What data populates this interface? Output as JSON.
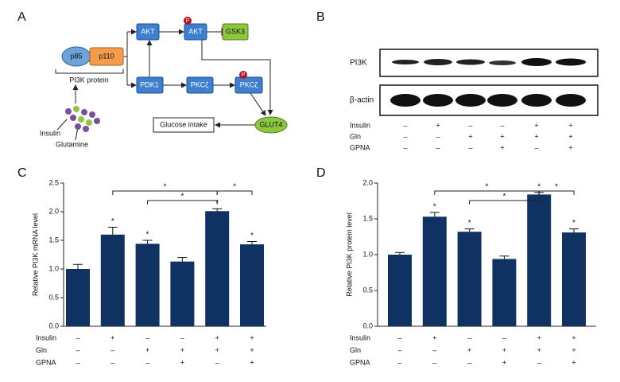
{
  "panel_labels": [
    "A",
    "B",
    "C",
    "D"
  ],
  "diagram": {
    "nodes": {
      "p85": "p85",
      "p110": "p110",
      "pi3k": "PI3K protein",
      "akt": "AKT",
      "pakt": "AKT",
      "gsk3": "GSK3",
      "pdk1": "PDK1",
      "pkc": "PKCζ",
      "ppkc": "PKCζ",
      "glut4": "GLUT4",
      "glucose": "Glucose intake",
      "insulin": "Insulin",
      "glutamine": "Glutamine"
    },
    "phospho": "P"
  },
  "blot": {
    "bands": [
      "PI3K",
      "β-actin"
    ],
    "treatments": [
      {
        "name": "Insulin",
        "signs": [
          "–",
          "+",
          "–",
          "–",
          "+",
          "+"
        ]
      },
      {
        "name": "Gln",
        "signs": [
          "–",
          "–",
          "+",
          "+",
          "+",
          "+"
        ]
      },
      {
        "name": "GPNA",
        "signs": [
          "–",
          "–",
          "–",
          "+",
          "–",
          "+"
        ]
      }
    ]
  },
  "chart_data": [
    {
      "type": "bar",
      "y_label": "Relative PI3K mRNA level",
      "color": "#0f3263",
      "values": [
        1.0,
        1.6,
        1.44,
        1.13,
        2.01,
        1.43
      ],
      "errors": [
        0.08,
        0.13,
        0.06,
        0.07,
        0.04,
        0.05
      ],
      "annotations": [
        null,
        "*",
        "*",
        null,
        "*",
        "*"
      ],
      "brackets": [
        {
          "between": [
            1,
            4
          ],
          "label": "*"
        },
        {
          "between": [
            2,
            4
          ],
          "label": "*"
        },
        {
          "between": [
            4,
            5
          ],
          "label": "*"
        }
      ],
      "ylim": [
        0,
        2.5
      ],
      "yticks": [
        {
          "value": 0,
          "label": "0.0"
        },
        0.5,
        {
          "value": 1,
          "label": "1.0"
        },
        1.5,
        {
          "value": 2,
          "label": "2.0"
        },
        2.5
      ],
      "treatments": [
        {
          "name": "Insulin",
          "signs": [
            "–",
            "+",
            "–",
            "–",
            "+",
            "+"
          ]
        },
        {
          "name": "Gln",
          "signs": [
            "–",
            "–",
            "+",
            "+",
            "+",
            "+"
          ]
        },
        {
          "name": "GPNA",
          "signs": [
            "–",
            "–",
            "–",
            "+",
            "–",
            "+"
          ]
        }
      ]
    },
    {
      "type": "bar",
      "y_label": "Relative PI3K protein level",
      "color": "#0f3263",
      "values": [
        1.0,
        1.53,
        1.32,
        0.94,
        1.84,
        1.31
      ],
      "errors": [
        0.03,
        0.06,
        0.04,
        0.04,
        0.03,
        0.05
      ],
      "annotations": [
        null,
        "*",
        "*",
        null,
        "*",
        "*"
      ],
      "brackets": [
        {
          "between": [
            1,
            4
          ],
          "label": "*"
        },
        {
          "between": [
            2,
            4
          ],
          "label": "*"
        },
        {
          "between": [
            4,
            5
          ],
          "label": "*"
        }
      ],
      "ylim": [
        0,
        2.0
      ],
      "yticks": [
        {
          "value": 0,
          "label": "0.0"
        },
        0.5,
        {
          "value": 1,
          "label": "1.0"
        },
        1.5,
        {
          "value": 2,
          "label": "2.0"
        }
      ],
      "treatments": [
        {
          "name": "Insulin",
          "signs": [
            "–",
            "+",
            "–",
            "–",
            "+",
            "+"
          ]
        },
        {
          "name": "Gln",
          "signs": [
            "–",
            "–",
            "+",
            "+",
            "+",
            "+"
          ]
        },
        {
          "name": "GPNA",
          "signs": [
            "–",
            "–",
            "–",
            "+",
            "–",
            "+"
          ]
        }
      ]
    }
  ]
}
